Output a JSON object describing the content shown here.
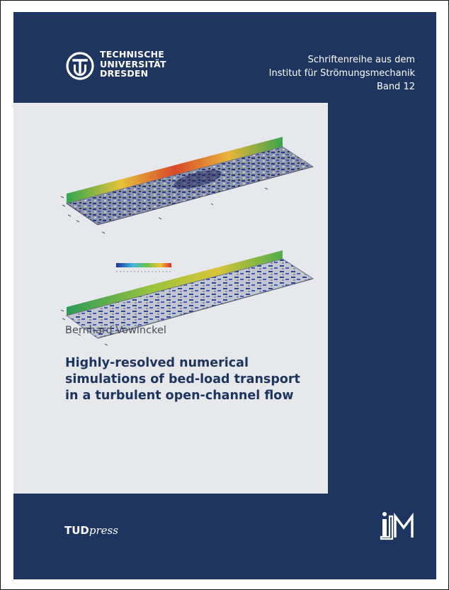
{
  "university": {
    "line1": "TECHNISCHE",
    "line2": "UNIVERSITÄT",
    "line3": "DRESDEN"
  },
  "series": {
    "line1": "Schriftenreihe aus dem",
    "line2": "Institut für Strömungsmechanik",
    "line3": "Band 12"
  },
  "author": "Bernhard Vowinckel",
  "title": {
    "line1": "Highly-resolved numerical",
    "line2": "simulations of bed-load transport",
    "line3": "in a turbulent open-channel flow"
  },
  "publisher": {
    "brand": "TUD",
    "suffix": "press"
  },
  "institute_logo": "ISM",
  "colors": {
    "cover_background": "#1e3560",
    "panel_background": "#e6e8ec",
    "title_text": "#1e3560"
  }
}
